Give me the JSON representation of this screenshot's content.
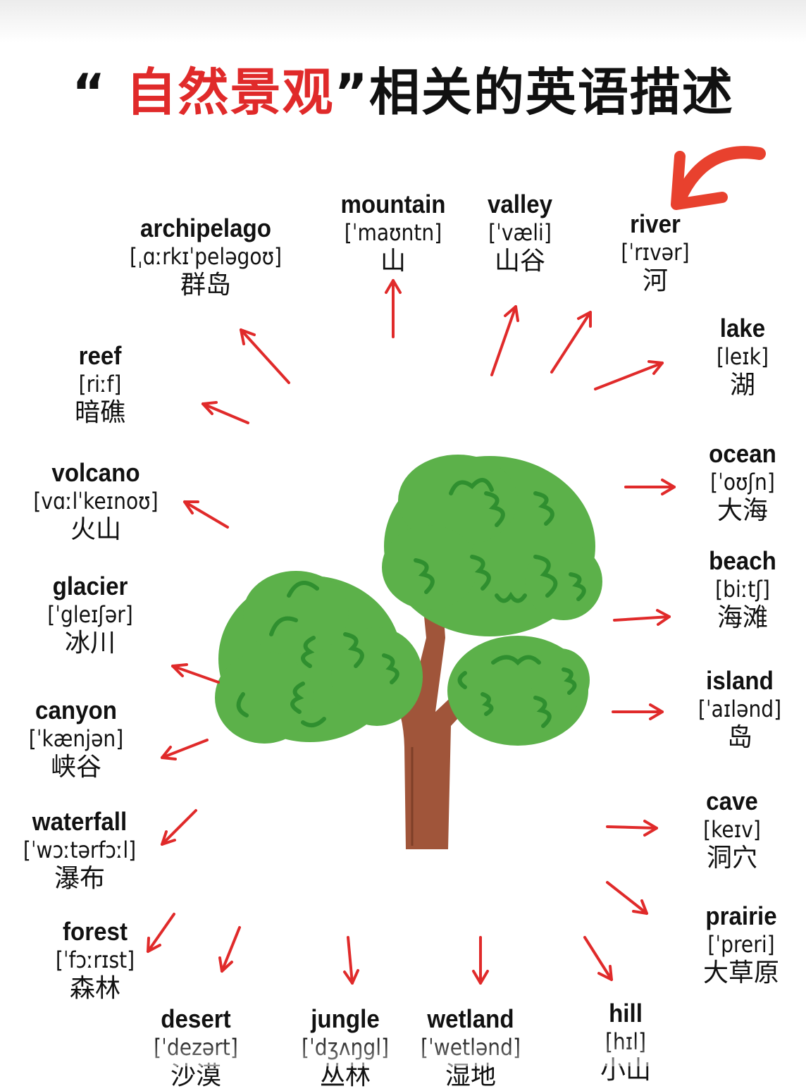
{
  "title": {
    "open_quote": "“",
    "highlight": "自然景观",
    "rest": "”相关的英语描述"
  },
  "colors": {
    "accent": "#e02a2a",
    "leaf": "#5cb14a",
    "leaf_dark": "#2f8f2f",
    "trunk": "#a0553a"
  },
  "words": [
    {
      "en": "archipelago",
      "ipa": "[ˌɑːrkɪˈpelәgoʊ]",
      "zh": "群岛"
    },
    {
      "en": "mountain",
      "ipa": "[ˈmaʊntn]",
      "zh": "山"
    },
    {
      "en": "valley",
      "ipa": "[ˈvæli]",
      "zh": "山谷"
    },
    {
      "en": "river",
      "ipa": "[ˈrɪvәr]",
      "zh": "河"
    },
    {
      "en": "lake",
      "ipa": "[leɪk]",
      "zh": "湖"
    },
    {
      "en": "reef",
      "ipa": "[riːf]",
      "zh": "暗礁"
    },
    {
      "en": "volcano",
      "ipa": "[vɑːlˈkeɪnoʊ]",
      "zh": "火山"
    },
    {
      "en": "ocean",
      "ipa": "[ˈoʊʃn]",
      "zh": "大海"
    },
    {
      "en": "beach",
      "ipa": "[biːtʃ]",
      "zh": "海滩"
    },
    {
      "en": "glacier",
      "ipa": "[ˈgleɪʃәr]",
      "zh": "冰川"
    },
    {
      "en": "island",
      "ipa": "[ˈaɪlәnd]",
      "zh": "岛"
    },
    {
      "en": "canyon",
      "ipa": "[ˈkænjәn]",
      "zh": "峡谷"
    },
    {
      "en": "cave",
      "ipa": "[keɪv]",
      "zh": "洞穴"
    },
    {
      "en": "waterfall",
      "ipa": "[ˈwɔːtәrfɔːl]",
      "zh": "瀑布"
    },
    {
      "en": "prairie",
      "ipa": "[ˈpreri]",
      "zh": "大草原"
    },
    {
      "en": "forest",
      "ipa": "[ˈfɔːrɪst]",
      "zh": "森林"
    },
    {
      "en": "desert",
      "ipa": "[ˈdezәrt]",
      "zh": "沙漠"
    },
    {
      "en": "jungle",
      "ipa": "[ˈdʒʌŋgl]",
      "zh": "丛林"
    },
    {
      "en": "wetland",
      "ipa": "[ˈwetlәnd]",
      "zh": "湿地"
    },
    {
      "en": "hill",
      "ipa": "[hɪl]",
      "zh": "小山"
    }
  ]
}
